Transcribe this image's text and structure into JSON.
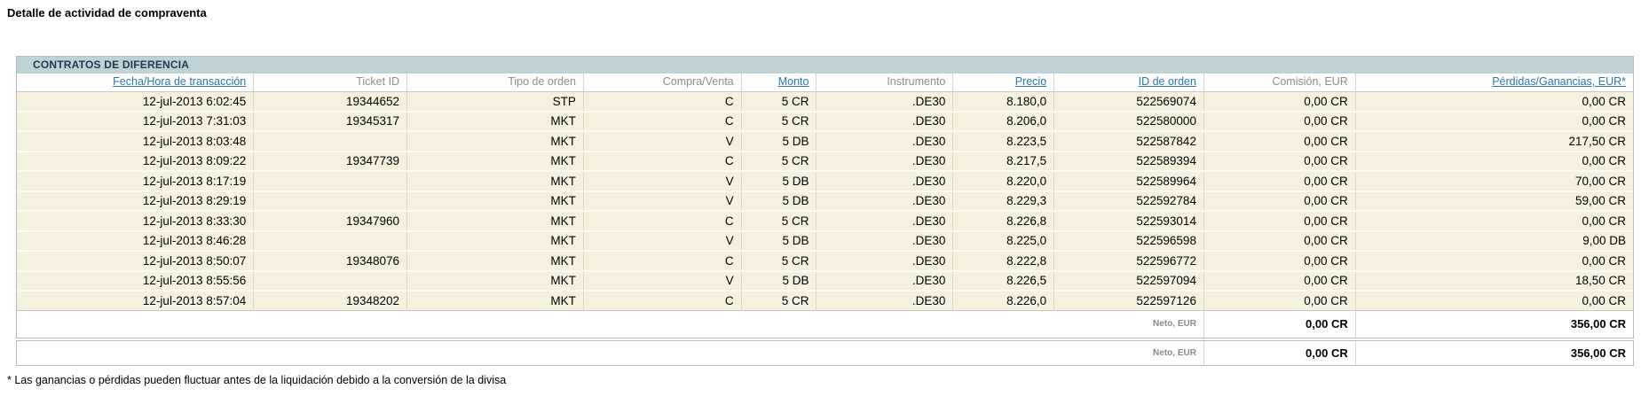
{
  "page": {
    "title": "Detalle de actividad de compraventa",
    "footnote": "* Las ganancias o pérdidas pueden fluctuar antes de la liquidación debido a la conversión de la divisa"
  },
  "colors": {
    "section_header_bg": "#bfd2d5",
    "section_header_text": "#1c3a54",
    "data_row_bg": "#f6f1de",
    "link_blue": "#2b77b6",
    "header_text_gray": "#8e8e8e"
  },
  "cfd_table": {
    "section_title": "CONTRATOS DE DIFERENCIA",
    "columns": [
      {
        "key": "fecha",
        "label": "Fecha/Hora de transacción",
        "sortable": true
      },
      {
        "key": "ticket-id",
        "label": "Ticket ID",
        "sortable": false
      },
      {
        "key": "tipo-orden",
        "label": "Tipo de orden",
        "sortable": false
      },
      {
        "key": "compra-venta",
        "label": "Compra/Venta",
        "sortable": false
      },
      {
        "key": "monto",
        "label": "Monto",
        "sortable": true
      },
      {
        "key": "instrumento",
        "label": "Instrumento",
        "sortable": false
      },
      {
        "key": "precio",
        "label": "Precio",
        "sortable": true
      },
      {
        "key": "id-orden",
        "label": "ID de orden",
        "sortable": true
      },
      {
        "key": "comision",
        "label": "Comisión, EUR",
        "sortable": false
      },
      {
        "key": "perdidas-ganancias",
        "label": "Pérdidas/Ganancias, EUR*",
        "sortable": true
      }
    ],
    "rows": [
      [
        "12-jul-2013 6:02:45",
        "19344652",
        "STP",
        "C",
        "5 CR",
        ".DE30",
        "8.180,0",
        "522569074",
        "0,00 CR",
        "0,00 CR"
      ],
      [
        "12-jul-2013 7:31:03",
        "19345317",
        "MKT",
        "C",
        "5 CR",
        ".DE30",
        "8.206,0",
        "522580000",
        "0,00 CR",
        "0,00 CR"
      ],
      [
        "12-jul-2013 8:03:48",
        "",
        "MKT",
        "V",
        "5 DB",
        ".DE30",
        "8.223,5",
        "522587842",
        "0,00 CR",
        "217,50 CR"
      ],
      [
        "12-jul-2013 8:09:22",
        "19347739",
        "MKT",
        "C",
        "5 CR",
        ".DE30",
        "8.217,5",
        "522589394",
        "0,00 CR",
        "0,00 CR"
      ],
      [
        "12-jul-2013 8:17:19",
        "",
        "MKT",
        "V",
        "5 DB",
        ".DE30",
        "8.220,0",
        "522589964",
        "0,00 CR",
        "70,00 CR"
      ],
      [
        "12-jul-2013 8:29:19",
        "",
        "MKT",
        "V",
        "5 DB",
        ".DE30",
        "8.229,3",
        "522592784",
        "0,00 CR",
        "59,00 CR"
      ],
      [
        "12-jul-2013 8:33:30",
        "19347960",
        "MKT",
        "C",
        "5 CR",
        ".DE30",
        "8.226,8",
        "522593014",
        "0,00 CR",
        "0,00 CR"
      ],
      [
        "12-jul-2013 8:46:28",
        "",
        "MKT",
        "V",
        "5 DB",
        ".DE30",
        "8.225,0",
        "522596598",
        "0,00 CR",
        "9,00 DB"
      ],
      [
        "12-jul-2013 8:50:07",
        "19348076",
        "MKT",
        "C",
        "5 CR",
        ".DE30",
        "8.222,8",
        "522596772",
        "0,00 CR",
        "0,00 CR"
      ],
      [
        "12-jul-2013 8:55:56",
        "",
        "MKT",
        "V",
        "5 DB",
        ".DE30",
        "8.226,5",
        "522597094",
        "0,00 CR",
        "18,50 CR"
      ],
      [
        "12-jul-2013 8:57:04",
        "19348202",
        "MKT",
        "C",
        "5 CR",
        ".DE30",
        "8.226,0",
        "522597126",
        "0,00 CR",
        "0,00 CR"
      ]
    ],
    "net_row": {
      "label": "Neto, EUR",
      "comision": "0,00 CR",
      "perdidas_ganancias": "356,00 CR"
    }
  },
  "total_row": {
    "label": "Neto, EUR",
    "comision": "0,00 CR",
    "perdidas_ganancias": "356,00 CR"
  }
}
